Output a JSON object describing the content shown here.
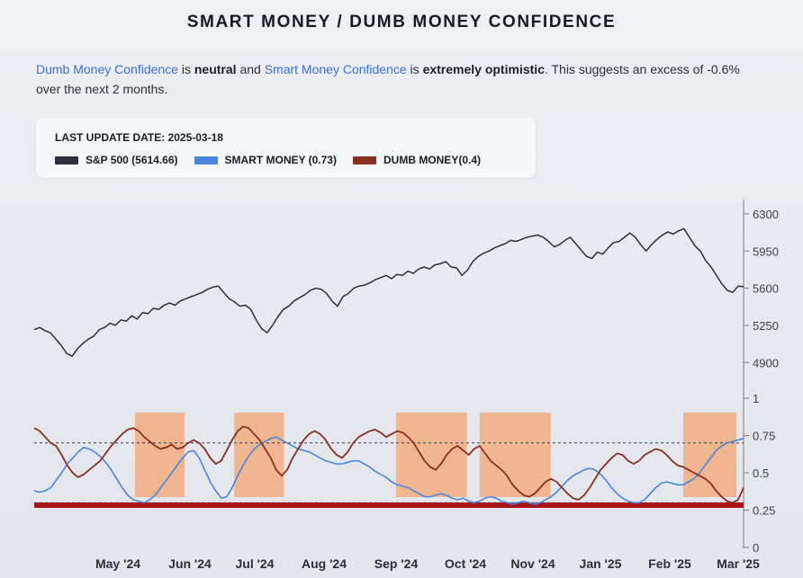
{
  "title": "SMART MONEY / DUMB MONEY CONFIDENCE",
  "description": {
    "part1": "Dumb Money Confidence",
    "part2": " is ",
    "part3": "neutral",
    "part4": " and ",
    "part5": "Smart Money Confidence",
    "part6": " is ",
    "part7": "extremely optimistic",
    "part8": ". This suggests an excess of -0.6% over the next 2 months."
  },
  "legend": {
    "update_label": "LAST UPDATE DATE: 2025-03-18",
    "items": [
      {
        "label": "S&P 500 (5614.66)",
        "color": "#2a2f3d"
      },
      {
        "label": "SMART MONEY (0.73)",
        "color": "#4a86e0"
      },
      {
        "label": "DUMB MONEY(0.4)",
        "color": "#8a2f24"
      }
    ]
  },
  "chart_data": {
    "type": "line",
    "x_labels": [
      "May '24",
      "Jun '24",
      "Jul '24",
      "Aug '24",
      "Sep '24",
      "Oct '24",
      "Nov '24",
      "Jan '25",
      "Feb '25",
      "Mar '25"
    ],
    "price_axis": {
      "ticks": [
        4900,
        5250,
        5600,
        5950,
        6300
      ],
      "range": [
        4750,
        6350
      ]
    },
    "confidence_axis": {
      "ticks": [
        0,
        0.25,
        0.5,
        0.75,
        1
      ],
      "range": [
        0,
        1
      ]
    },
    "reference_lines": [
      0.3,
      0.7
    ],
    "sp500": [
      5210,
      5230,
      5200,
      5180,
      5120,
      5060,
      4985,
      4960,
      5030,
      5080,
      5120,
      5150,
      5210,
      5230,
      5270,
      5250,
      5300,
      5290,
      5340,
      5310,
      5370,
      5360,
      5410,
      5400,
      5440,
      5460,
      5440,
      5480,
      5500,
      5520,
      5540,
      5560,
      5590,
      5610,
      5620,
      5560,
      5500,
      5470,
      5430,
      5440,
      5400,
      5300,
      5220,
      5180,
      5250,
      5330,
      5400,
      5430,
      5480,
      5510,
      5540,
      5580,
      5600,
      5590,
      5550,
      5480,
      5430,
      5520,
      5550,
      5600,
      5620,
      5630,
      5650,
      5680,
      5700,
      5720,
      5690,
      5730,
      5720,
      5760,
      5740,
      5780,
      5800,
      5780,
      5820,
      5830,
      5850,
      5800,
      5790,
      5720,
      5770,
      5850,
      5900,
      5930,
      5950,
      5980,
      6000,
      6020,
      6050,
      6040,
      6060,
      6080,
      6090,
      6100,
      6080,
      6040,
      5990,
      6010,
      6050,
      6080,
      6020,
      5960,
      5900,
      5880,
      5940,
      5920,
      5980,
      6030,
      6040,
      6080,
      6120,
      6080,
      6010,
      5950,
      6010,
      6060,
      6100,
      6130,
      6110,
      6140,
      6160,
      6080,
      6000,
      5950,
      5860,
      5800,
      5720,
      5640,
      5580,
      5560,
      5620,
      5614.66
    ],
    "smart_money": [
      0.38,
      0.37,
      0.38,
      0.4,
      0.45,
      0.5,
      0.56,
      0.6,
      0.64,
      0.67,
      0.66,
      0.64,
      0.61,
      0.57,
      0.52,
      0.46,
      0.4,
      0.35,
      0.32,
      0.31,
      0.3,
      0.32,
      0.35,
      0.4,
      0.45,
      0.5,
      0.55,
      0.6,
      0.64,
      0.65,
      0.6,
      0.52,
      0.44,
      0.38,
      0.33,
      0.34,
      0.4,
      0.48,
      0.55,
      0.61,
      0.66,
      0.69,
      0.71,
      0.73,
      0.74,
      0.72,
      0.7,
      0.68,
      0.66,
      0.65,
      0.64,
      0.62,
      0.6,
      0.58,
      0.57,
      0.56,
      0.56,
      0.57,
      0.58,
      0.58,
      0.56,
      0.54,
      0.51,
      0.49,
      0.47,
      0.44,
      0.42,
      0.41,
      0.4,
      0.38,
      0.36,
      0.34,
      0.34,
      0.35,
      0.36,
      0.35,
      0.33,
      0.32,
      0.33,
      0.31,
      0.3,
      0.31,
      0.33,
      0.34,
      0.33,
      0.31,
      0.3,
      0.29,
      0.3,
      0.31,
      0.3,
      0.29,
      0.3,
      0.32,
      0.34,
      0.37,
      0.41,
      0.45,
      0.48,
      0.5,
      0.52,
      0.53,
      0.52,
      0.49,
      0.45,
      0.4,
      0.36,
      0.33,
      0.31,
      0.3,
      0.3,
      0.32,
      0.36,
      0.4,
      0.43,
      0.44,
      0.43,
      0.42,
      0.42,
      0.44,
      0.46,
      0.5,
      0.55,
      0.6,
      0.65,
      0.68,
      0.7,
      0.71,
      0.72,
      0.73
    ],
    "dumb_money": [
      0.8,
      0.78,
      0.74,
      0.7,
      0.68,
      0.62,
      0.55,
      0.5,
      0.47,
      0.49,
      0.52,
      0.55,
      0.58,
      0.63,
      0.68,
      0.72,
      0.76,
      0.79,
      0.8,
      0.78,
      0.74,
      0.71,
      0.68,
      0.66,
      0.67,
      0.69,
      0.66,
      0.67,
      0.7,
      0.72,
      0.7,
      0.66,
      0.6,
      0.56,
      0.58,
      0.65,
      0.72,
      0.78,
      0.81,
      0.8,
      0.76,
      0.72,
      0.66,
      0.6,
      0.52,
      0.48,
      0.52,
      0.6,
      0.66,
      0.72,
      0.76,
      0.78,
      0.76,
      0.72,
      0.66,
      0.62,
      0.6,
      0.64,
      0.7,
      0.74,
      0.76,
      0.78,
      0.79,
      0.77,
      0.74,
      0.76,
      0.78,
      0.77,
      0.74,
      0.7,
      0.64,
      0.58,
      0.54,
      0.52,
      0.56,
      0.62,
      0.66,
      0.68,
      0.65,
      0.62,
      0.66,
      0.68,
      0.63,
      0.58,
      0.55,
      0.52,
      0.48,
      0.42,
      0.38,
      0.35,
      0.34,
      0.36,
      0.4,
      0.44,
      0.46,
      0.44,
      0.4,
      0.36,
      0.33,
      0.32,
      0.35,
      0.4,
      0.46,
      0.52,
      0.56,
      0.6,
      0.63,
      0.62,
      0.58,
      0.56,
      0.58,
      0.62,
      0.64,
      0.66,
      0.65,
      0.62,
      0.58,
      0.55,
      0.54,
      0.52,
      0.5,
      0.48,
      0.46,
      0.43,
      0.38,
      0.34,
      0.31,
      0.3,
      0.32,
      0.4
    ],
    "highlight_regions": [
      {
        "start": 0.142,
        "end": 0.212
      },
      {
        "start": 0.282,
        "end": 0.352
      },
      {
        "start": 0.51,
        "end": 0.61
      },
      {
        "start": 0.628,
        "end": 0.728
      },
      {
        "start": 0.915,
        "end": 0.99
      }
    ]
  }
}
